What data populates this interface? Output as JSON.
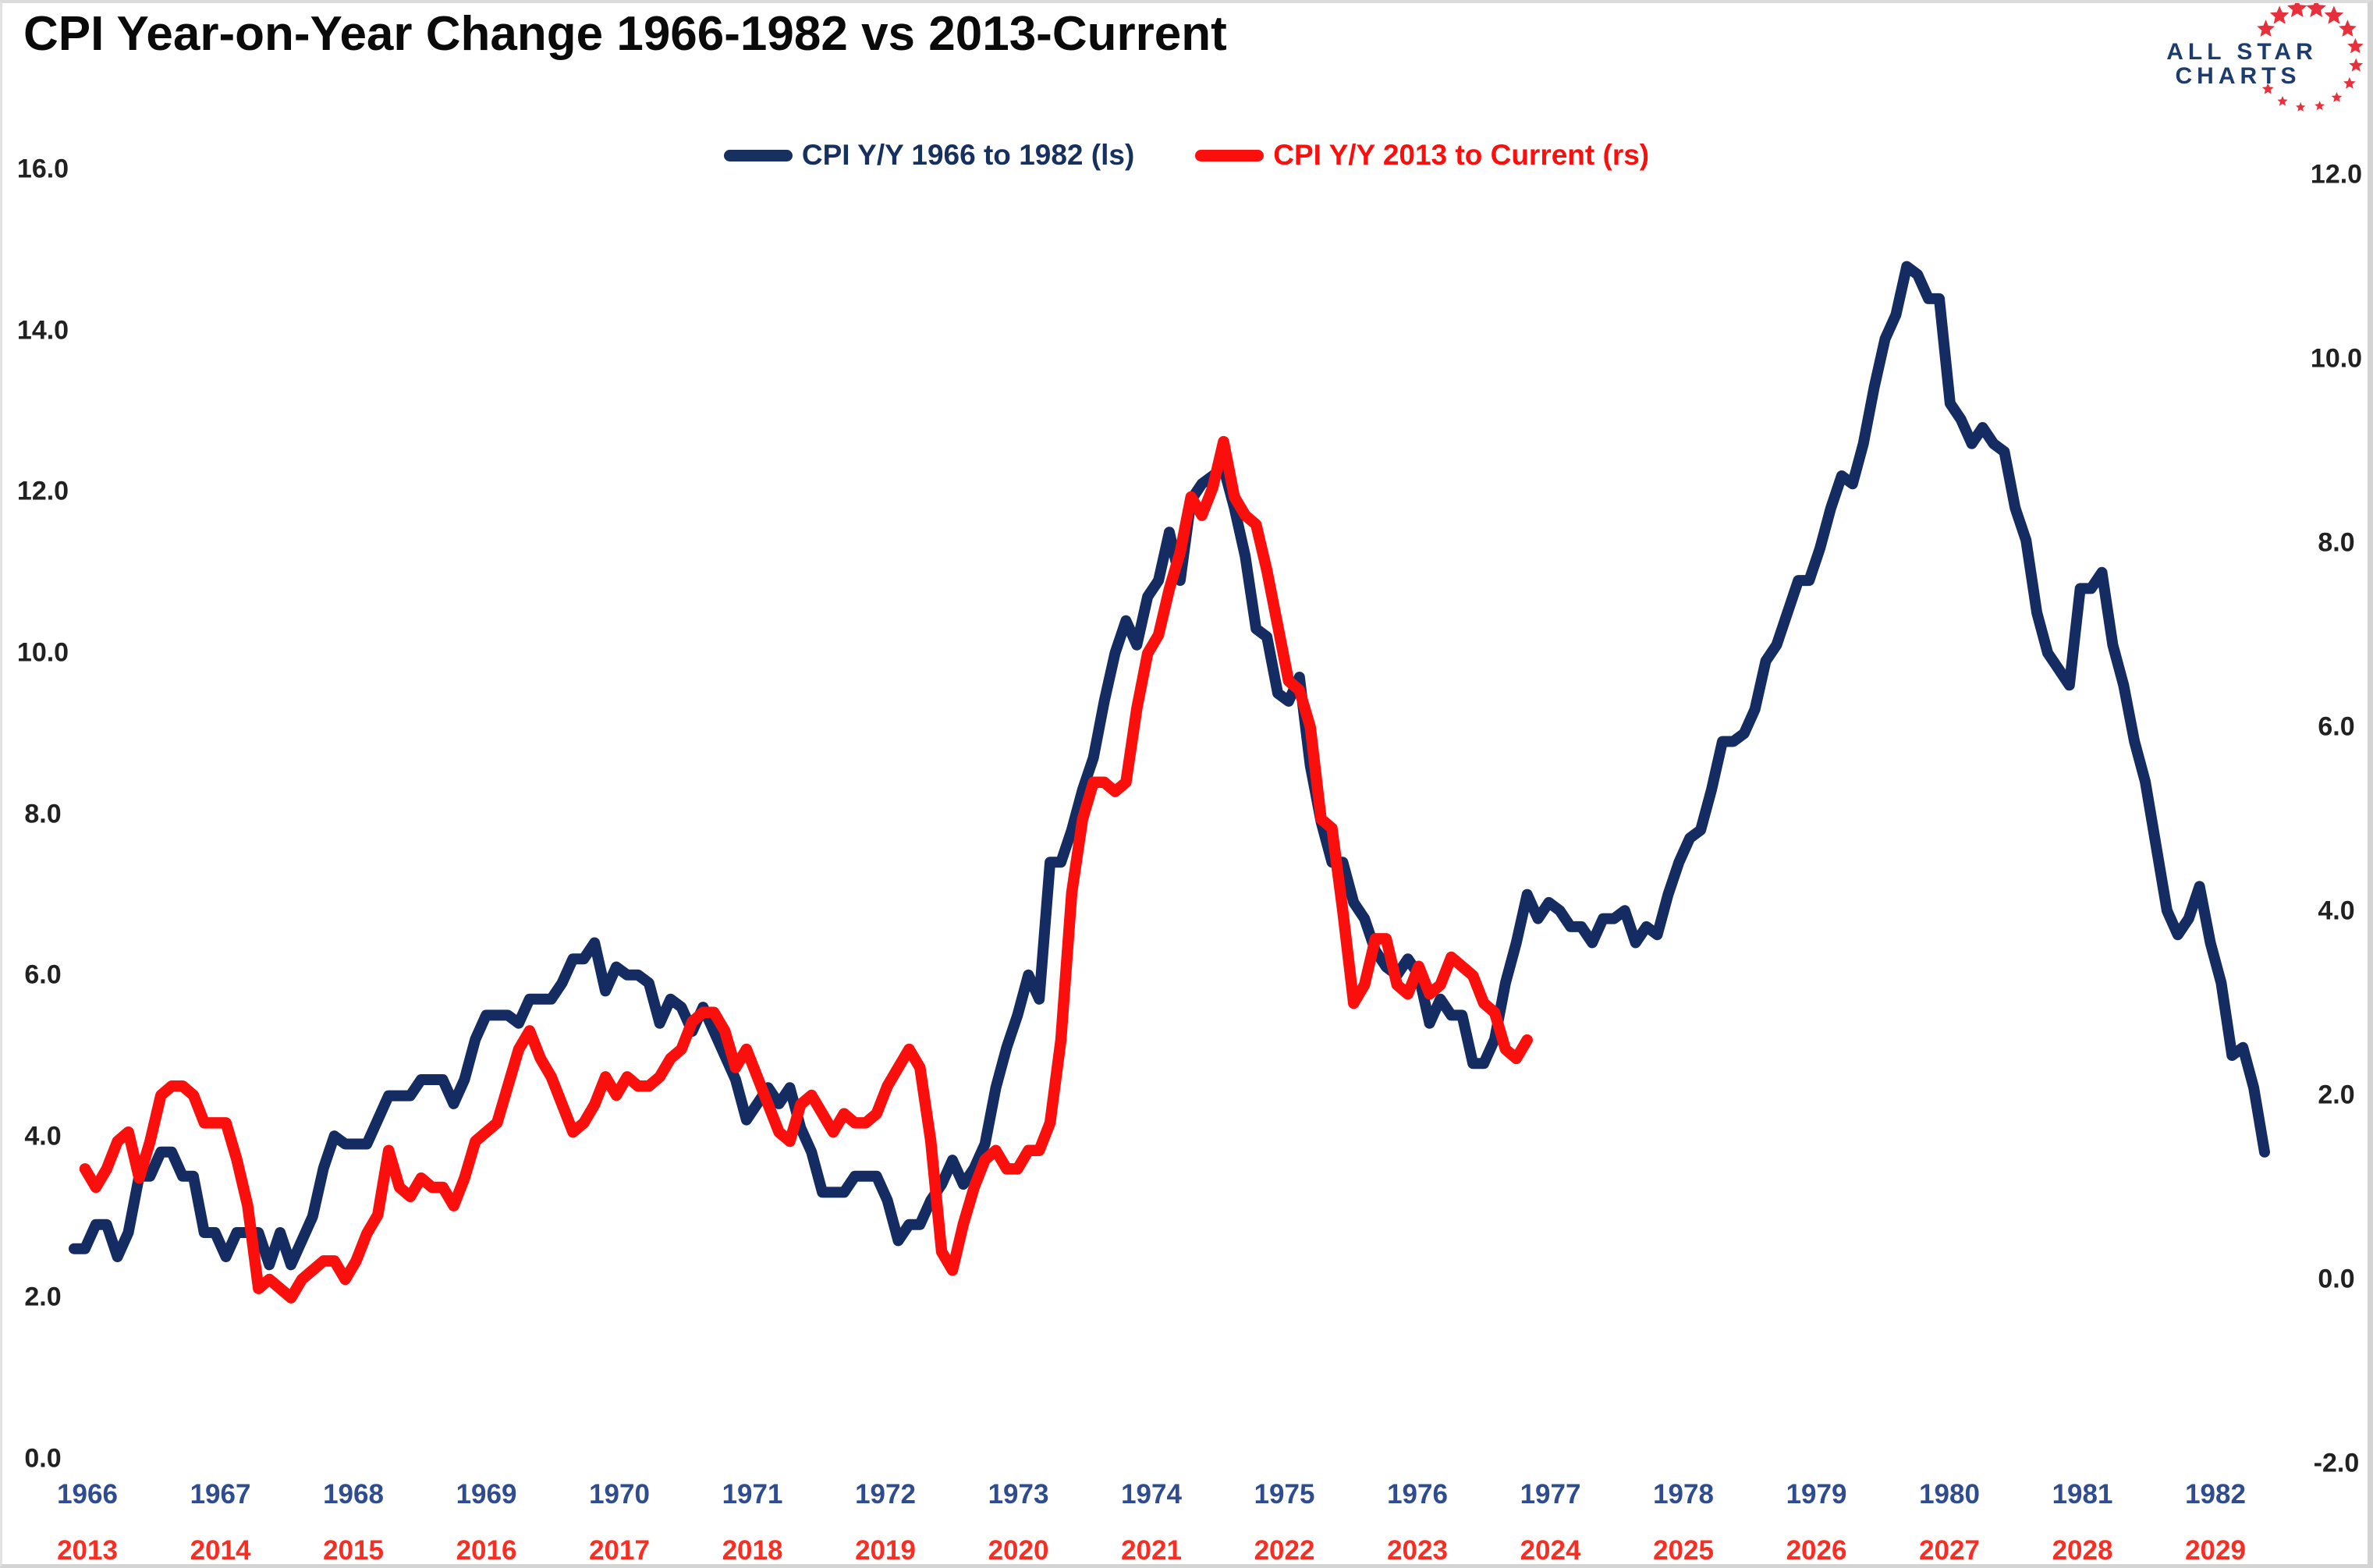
{
  "title": "CPI Year-on-Year Change 1966-1982 vs 2013-Current",
  "logo": {
    "line1": "ALL STAR",
    "line2": "CHARTS",
    "text_color": "#1d3c6e",
    "star_color": "#e8303d"
  },
  "legend": {
    "items": [
      {
        "label": "CPI Y/Y 1966 to 1982 (ls)",
        "color": "#16305f"
      },
      {
        "label": "CPI Y/Y 2013 to Current (rs)",
        "color": "#fb0f0c"
      }
    ]
  },
  "axes": {
    "left_ticks": [
      "16.0",
      "14.0",
      "12.0",
      "10.0",
      "8.0",
      "6.0",
      "4.0",
      "2.0",
      "0.0"
    ],
    "right_ticks": [
      "12.0",
      "10.0",
      "8.0",
      "6.0",
      "4.0",
      "2.0",
      "0.0",
      "-2.0"
    ],
    "tick_color": "#212121",
    "blue_year_labels": [
      "1966",
      "1967",
      "1968",
      "1969",
      "1970",
      "1971",
      "1972",
      "1973",
      "1974",
      "1975",
      "1976",
      "1977",
      "1978",
      "1979",
      "1980",
      "1981",
      "1982"
    ],
    "red_year_labels": [
      "2013",
      "2014",
      "2015",
      "2016",
      "2017",
      "2018",
      "2019",
      "2020",
      "2021",
      "2022",
      "2023",
      "2024",
      "2025",
      "2026",
      "2027",
      "2028",
      "2029"
    ],
    "blue_year_color": "#2e4c8f",
    "red_year_color": "#fa2d22"
  },
  "chart_data": {
    "type": "line",
    "title": "CPI Year-on-Year Change 1966-1982 vs 2013-Current",
    "legend_position": "top-center",
    "grid": false,
    "y_axis_left": {
      "range": [
        0,
        16
      ],
      "tick_step": 2,
      "applies_to": "CPI Y/Y 1966 to 1982"
    },
    "y_axis_right": {
      "range": [
        -2,
        12
      ],
      "tick_step": 2,
      "applies_to": "CPI Y/Y 2013 to Current"
    },
    "x_axis": {
      "dual_labels": true,
      "top_row_years": "1966-1982",
      "bottom_row_years": "2013-2029"
    },
    "series": [
      {
        "name": "CPI Y/Y 1966 to 1982 (ls)",
        "axis": "left",
        "color": "#142c61",
        "frequency": "monthly",
        "start": "1966-02",
        "end": "1982-12",
        "values": [
          2.6,
          2.6,
          2.9,
          2.9,
          2.5,
          2.8,
          3.5,
          3.5,
          3.8,
          3.8,
          3.5,
          3.5,
          2.8,
          2.8,
          2.5,
          2.8,
          2.8,
          2.8,
          2.4,
          2.8,
          2.4,
          2.7,
          3.0,
          3.6,
          4.0,
          3.9,
          3.9,
          3.9,
          4.2,
          4.5,
          4.5,
          4.5,
          4.7,
          4.7,
          4.7,
          4.4,
          4.7,
          5.2,
          5.5,
          5.5,
          5.5,
          5.4,
          5.7,
          5.7,
          5.7,
          5.9,
          6.2,
          6.2,
          6.4,
          5.8,
          6.1,
          6.0,
          6.0,
          5.9,
          5.4,
          5.7,
          5.6,
          5.3,
          5.6,
          5.3,
          5.0,
          4.7,
          4.2,
          4.4,
          4.6,
          4.4,
          4.6,
          4.1,
          3.8,
          3.3,
          3.3,
          3.3,
          3.5,
          3.5,
          3.5,
          3.2,
          2.7,
          2.9,
          2.9,
          3.2,
          3.4,
          3.7,
          3.4,
          3.6,
          3.9,
          4.6,
          5.1,
          5.5,
          6.0,
          5.7,
          7.4,
          7.4,
          7.8,
          8.3,
          8.7,
          9.4,
          10.0,
          10.4,
          10.1,
          10.7,
          10.9,
          11.5,
          10.9,
          11.9,
          12.1,
          12.2,
          12.3,
          11.8,
          11.2,
          10.3,
          10.2,
          9.5,
          9.4,
          9.7,
          8.6,
          7.9,
          7.4,
          7.4,
          6.9,
          6.7,
          6.3,
          6.1,
          6.0,
          6.2,
          6.0,
          5.4,
          5.7,
          5.5,
          5.5,
          4.9,
          4.9,
          5.2,
          5.9,
          6.4,
          7.0,
          6.7,
          6.9,
          6.8,
          6.6,
          6.6,
          6.4,
          6.7,
          6.7,
          6.8,
          6.4,
          6.6,
          6.5,
          7.0,
          7.4,
          7.7,
          7.8,
          8.3,
          8.9,
          8.9,
          9.0,
          9.3,
          9.9,
          10.1,
          10.5,
          10.9,
          10.9,
          11.3,
          11.8,
          12.2,
          12.1,
          12.6,
          13.3,
          13.9,
          14.2,
          14.8,
          14.7,
          14.4,
          14.4,
          13.1,
          12.9,
          12.6,
          12.8,
          12.6,
          12.5,
          11.8,
          11.4,
          10.5,
          10.0,
          9.8,
          9.6,
          10.8,
          10.8,
          11.0,
          10.1,
          9.6,
          8.9,
          8.4,
          7.6,
          6.8,
          6.5,
          6.7,
          7.1,
          6.4,
          5.9,
          5.0,
          5.1,
          4.6,
          3.8
        ]
      },
      {
        "name": "CPI Y/Y 2013 to Current (rs)",
        "axis": "right",
        "color": "#fb0f0c",
        "frequency": "monthly",
        "start": "2013-09",
        "end": "2024-10",
        "values": [
          1.2,
          1.0,
          1.2,
          1.5,
          1.6,
          1.1,
          1.5,
          2.0,
          2.1,
          2.1,
          2.0,
          1.7,
          1.7,
          1.7,
          1.3,
          0.8,
          -0.1,
          0.0,
          -0.1,
          -0.2,
          0.0,
          0.1,
          0.2,
          0.2,
          0.0,
          0.2,
          0.5,
          0.7,
          1.4,
          1.0,
          0.9,
          1.1,
          1.0,
          1.0,
          0.8,
          1.1,
          1.5,
          1.6,
          1.7,
          2.1,
          2.5,
          2.7,
          2.4,
          2.2,
          1.9,
          1.6,
          1.7,
          1.9,
          2.2,
          2.0,
          2.2,
          2.1,
          2.1,
          2.2,
          2.4,
          2.5,
          2.8,
          2.9,
          2.9,
          2.7,
          2.3,
          2.5,
          2.2,
          1.9,
          1.6,
          1.5,
          1.9,
          2.0,
          1.8,
          1.6,
          1.8,
          1.7,
          1.7,
          1.8,
          2.1,
          2.3,
          2.5,
          2.3,
          1.5,
          0.3,
          0.1,
          0.6,
          1.0,
          1.3,
          1.4,
          1.2,
          1.2,
          1.4,
          1.4,
          1.7,
          2.6,
          4.2,
          5.0,
          5.4,
          5.4,
          5.3,
          5.4,
          6.2,
          6.8,
          7.0,
          7.5,
          7.9,
          8.5,
          8.3,
          8.6,
          9.1,
          8.5,
          8.3,
          8.2,
          7.7,
          7.1,
          6.5,
          6.4,
          6.0,
          5.0,
          4.9,
          4.0,
          3.0,
          3.2,
          3.7,
          3.7,
          3.2,
          3.1,
          3.4,
          3.1,
          3.2,
          3.5,
          3.4,
          3.3,
          3.0,
          2.9,
          2.5,
          2.4,
          2.6
        ]
      }
    ]
  }
}
